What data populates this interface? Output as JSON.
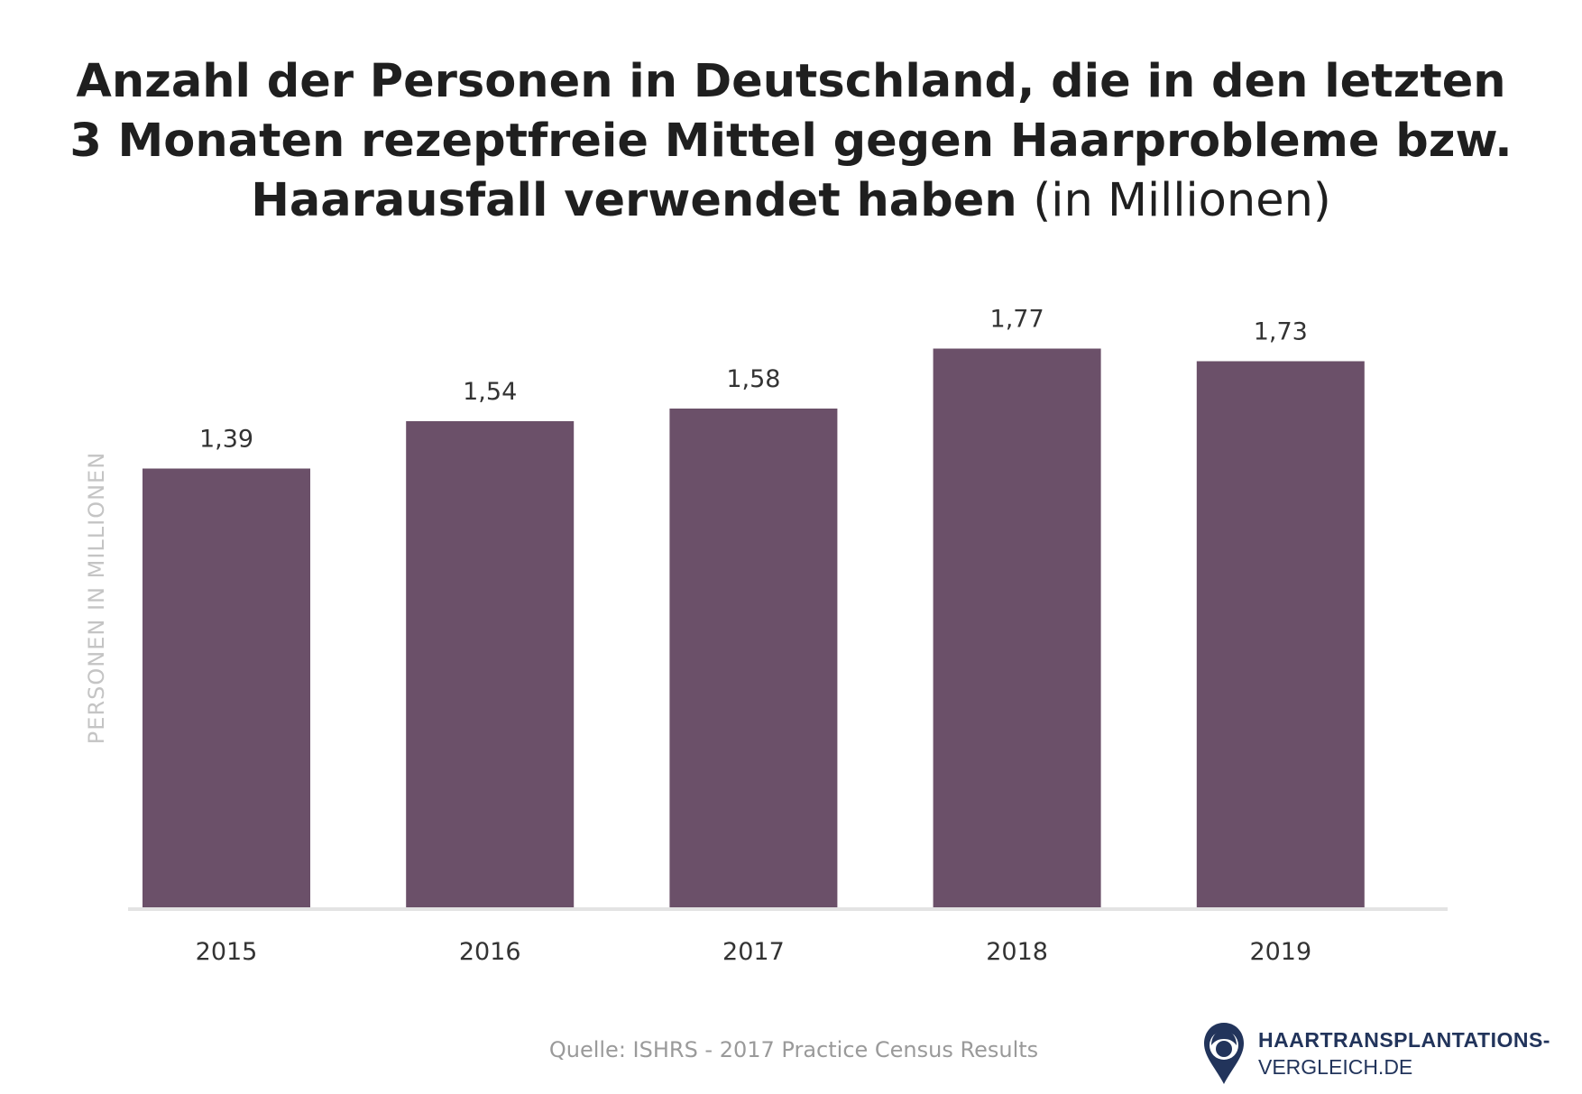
{
  "title": {
    "line1": "Anzahl der Personen in Deutschland, die in den letzten",
    "line2": "3 Monaten rezeptfreie Mittel gegen Haarprobleme bzw.",
    "line3": "Haarausfall verwendet haben",
    "unit": "(in Millionen)"
  },
  "chart_data": {
    "type": "bar",
    "title": "Anzahl der Personen in Deutschland, die in den letzten 3 Monaten rezeptfreie Mittel gegen Haarprobleme bzw. Haarausfall verwendet haben (in Millionen)",
    "categories": [
      "2015",
      "2016",
      "2017",
      "2018",
      "2019"
    ],
    "values": [
      1.39,
      1.54,
      1.58,
      1.77,
      1.73
    ],
    "value_labels": [
      "1,39",
      "1,54",
      "1,58",
      "1,77",
      "1,73"
    ],
    "xlabel": "",
    "ylabel": "PERSONEN IN MILLIONEN",
    "ylim": [
      0,
      1.95
    ],
    "grid": false,
    "bar_color": "#6b5069"
  },
  "source": "Quelle: ISHRS - 2017 Practice Census Results",
  "logo": {
    "line1": "HAARTRANSPLANTATIONS-",
    "line2": "VERGLEICH.DE",
    "icon": "location-pin-head-icon",
    "color": "#22345b"
  }
}
